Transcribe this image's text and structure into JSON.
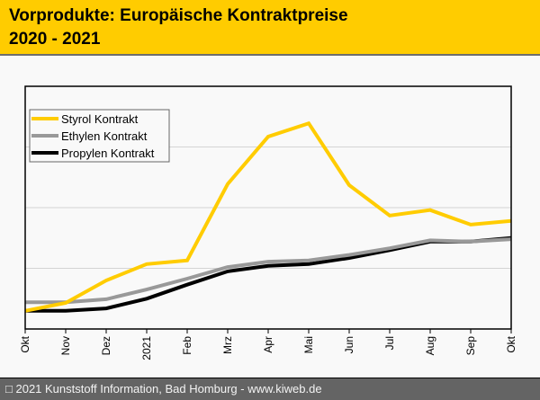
{
  "header": {
    "title_line1": "Vorprodukte: Europäische Kontraktpreise",
    "title_line2": "2020 - 2021"
  },
  "footer": {
    "icon": "copyright-icon",
    "text": "2021 Kunststoff Information, Bad Homburg - www.kiweb.de"
  },
  "chart_data": {
    "type": "line",
    "title": "Vorprodukte: Europäische Kontraktpreise 2020 - 2021",
    "xlabel": "",
    "ylabel": "",
    "y_units_note": "no y-axis labels shown; values normalized to gridline units (0 = x-axis, 4 = top of plot)",
    "ylim": [
      0,
      4
    ],
    "grid": true,
    "legend_position": "top-left",
    "categories": [
      "Okt",
      "Nov",
      "Dez",
      "2021",
      "Feb",
      "Mrz",
      "Apr",
      "Mai",
      "Jun",
      "Jul",
      "Aug",
      "Sep",
      "Okt"
    ],
    "series": [
      {
        "name": "Propylen Kontrakt",
        "color": "#000000",
        "values": [
          0.3,
          0.3,
          0.34,
          0.5,
          0.73,
          0.95,
          1.04,
          1.07,
          1.17,
          1.3,
          1.44,
          1.44,
          1.5
        ]
      },
      {
        "name": "Ethylen Kontrakt",
        "color": "#999999",
        "values": [
          0.44,
          0.44,
          0.49,
          0.65,
          0.83,
          1.02,
          1.11,
          1.13,
          1.22,
          1.33,
          1.46,
          1.44,
          1.48
        ]
      },
      {
        "name": "Styrol Kontrakt",
        "color": "#ffcc00",
        "values": [
          0.3,
          0.43,
          0.8,
          1.07,
          1.13,
          2.39,
          3.17,
          3.39,
          2.37,
          1.87,
          1.96,
          1.72,
          1.78
        ]
      }
    ],
    "legend_order": [
      "Styrol Kontrakt",
      "Ethylen Kontrakt",
      "Propylen Kontrakt"
    ]
  }
}
